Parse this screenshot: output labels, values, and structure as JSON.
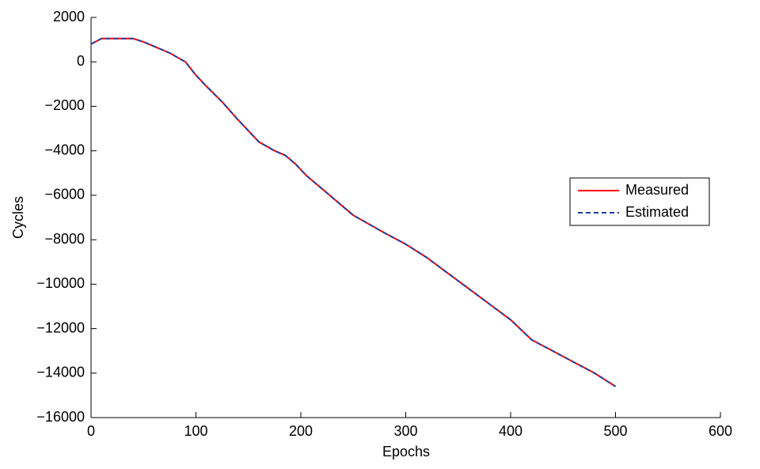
{
  "chart_data": {
    "type": "line",
    "xlabel": "Epochs",
    "ylabel": "Cycles",
    "x": [
      0,
      10,
      40,
      50,
      60,
      75,
      90,
      100,
      110,
      125,
      140,
      150,
      160,
      175,
      185,
      195,
      205,
      220,
      235,
      250,
      265,
      280,
      300,
      320,
      340,
      360,
      380,
      400,
      420,
      440,
      460,
      480,
      490,
      500
    ],
    "series": [
      {
        "name": "Measured",
        "color": "#ff0000",
        "dash": false,
        "values": [
          800,
          1050,
          1050,
          900,
          700,
          400,
          0,
          -600,
          -1100,
          -1800,
          -2600,
          -3100,
          -3600,
          -4000,
          -4200,
          -4600,
          -5100,
          -5700,
          -6300,
          -6900,
          -7300,
          -7700,
          -8200,
          -8800,
          -9500,
          -10200,
          -10900,
          -11600,
          -12500,
          -13000,
          -13500,
          -14000,
          -14300,
          -14600
        ]
      },
      {
        "name": "Estimated",
        "color": "#1f3f9f",
        "dash": true,
        "values": [
          800,
          1050,
          1050,
          900,
          700,
          400,
          0,
          -600,
          -1100,
          -1800,
          -2600,
          -3100,
          -3600,
          -4000,
          -4200,
          -4600,
          -5100,
          -5700,
          -6300,
          -6900,
          -7300,
          -7700,
          -8200,
          -8800,
          -9500,
          -10200,
          -10900,
          -11600,
          -12500,
          -13000,
          -13500,
          -14000,
          -14300,
          -14600
        ]
      }
    ],
    "xlim": [
      0,
      600
    ],
    "xticks": [
      0,
      100,
      200,
      300,
      400,
      500,
      600
    ],
    "ylim": [
      -16000,
      2000
    ],
    "yticks": [
      {
        "value": -16000,
        "label": "−16000"
      },
      {
        "value": -14000,
        "label": "−14000"
      },
      {
        "value": -12000,
        "label": "−12000"
      },
      {
        "value": -10000,
        "label": "−10000"
      },
      {
        "value": -8000,
        "label": "−8000"
      },
      {
        "value": -6000,
        "label": "−6000"
      },
      {
        "value": -4000,
        "label": "−4000"
      },
      {
        "value": -2000,
        "label": "−2000"
      },
      0,
      2000
    ],
    "grid": false,
    "legend": "right"
  }
}
